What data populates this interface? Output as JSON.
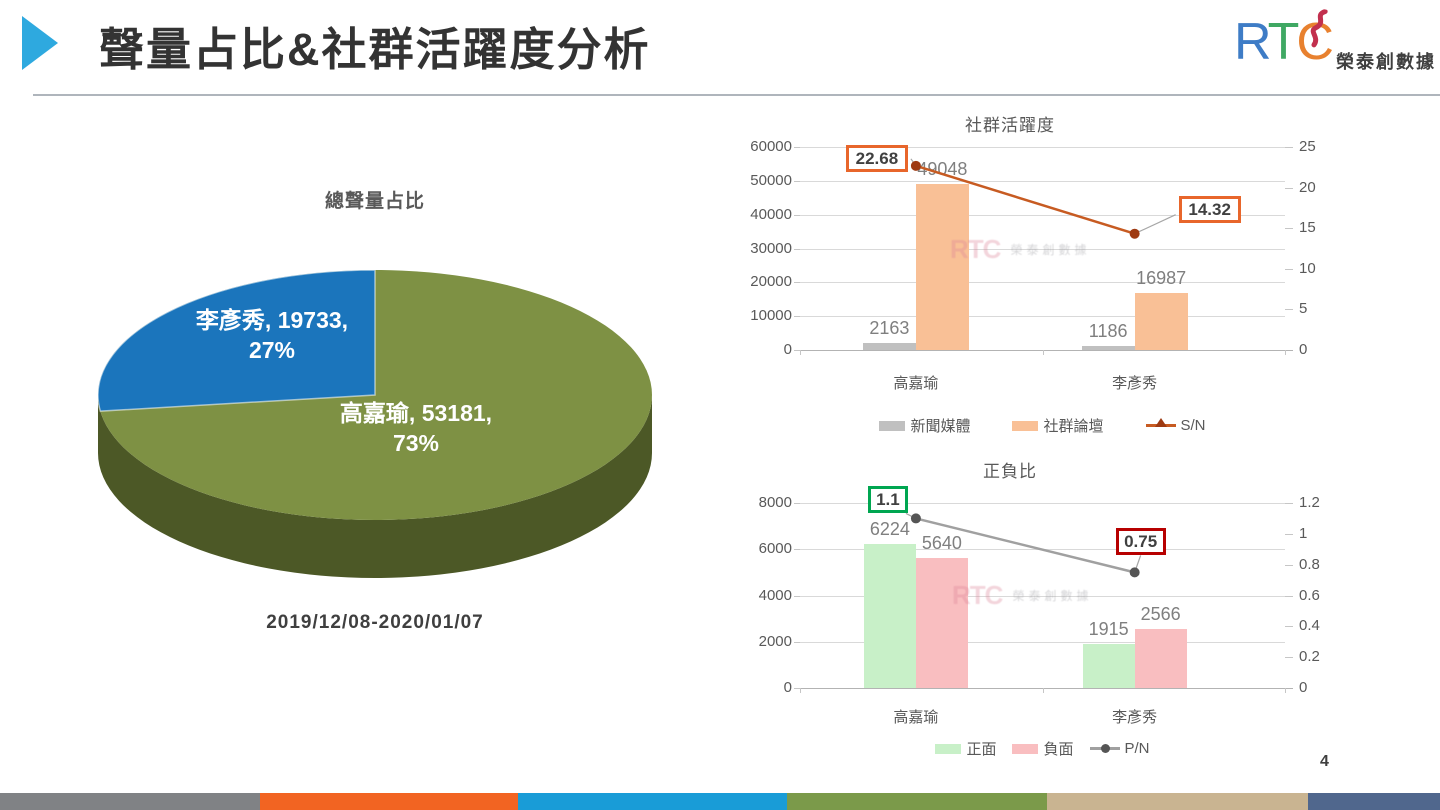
{
  "slide": {
    "title": "聲量占比&社群活躍度分析",
    "page_number": "4",
    "logo": {
      "r": "R",
      "t": "T",
      "c": "C",
      "company": "榮泰創數據"
    },
    "watermark": {
      "text": "RTC",
      "subtext": "榮泰創數據"
    },
    "accent_colors": {
      "header_triangle": "#2EA9DF",
      "header_rule": "#AFB5BC",
      "footer": [
        "#808285",
        "#F26422",
        "#199CD7",
        "#7B9A4A",
        "#C9B491",
        "#50678D"
      ]
    }
  },
  "chart_data": [
    {
      "type": "pie",
      "style": "3d",
      "title": "總聲量占比",
      "subtitle": "2019/12/08-2020/01/07",
      "labels": [
        "高嘉瑜",
        "李彥秀"
      ],
      "values": [
        53181,
        19733
      ],
      "percents": [
        "73%",
        "27%"
      ],
      "colors": [
        "#7E9144",
        "#1B75BC"
      ],
      "side_color": "#4C5826",
      "label_color": "#FFFFFF"
    },
    {
      "type": "bar-line-combo",
      "title": "社群活躍度",
      "categories": [
        "高嘉瑜",
        "李彥秀"
      ],
      "series": [
        {
          "name": "新聞媒體",
          "type": "bar",
          "color": "#C0C0C0",
          "values": [
            2163,
            1186
          ]
        },
        {
          "name": "社群論壇",
          "type": "bar",
          "color": "#F9C096",
          "values": [
            49048,
            16987
          ]
        },
        {
          "name": "S/N",
          "type": "line",
          "axis": "right",
          "color": "#C75B22",
          "marker_color": "#9E3A12",
          "legend_marker": "triangle",
          "values": [
            22.68,
            14.32
          ],
          "box_colors": [
            "#E8662B",
            "#E8662B"
          ]
        }
      ],
      "left_axis": {
        "min": 0,
        "max": 60000,
        "step": 10000
      },
      "right_axis": {
        "min": 0,
        "max": 25,
        "step": 5
      },
      "grid": true,
      "legend_position": "bottom"
    },
    {
      "type": "bar-line-combo",
      "title": "正負比",
      "categories": [
        "高嘉瑜",
        "李彥秀"
      ],
      "series": [
        {
          "name": "正面",
          "type": "bar",
          "color": "#C8F0C8",
          "values": [
            6224,
            1915
          ]
        },
        {
          "name": "負面",
          "type": "bar",
          "color": "#F9BEC0",
          "values": [
            5640,
            2566
          ]
        },
        {
          "name": "P/N",
          "type": "line",
          "axis": "right",
          "color": "#A0A0A0",
          "marker_color": "#555555",
          "legend_marker": "circle",
          "values": [
            1.1,
            0.75
          ],
          "box_colors": [
            "#00A651",
            "#B70000"
          ]
        }
      ],
      "left_axis": {
        "min": 0,
        "max": 8000,
        "step": 2000
      },
      "right_axis": {
        "min": 0,
        "max": 1.2,
        "step": 0.2
      },
      "grid": true,
      "legend_position": "bottom"
    }
  ]
}
